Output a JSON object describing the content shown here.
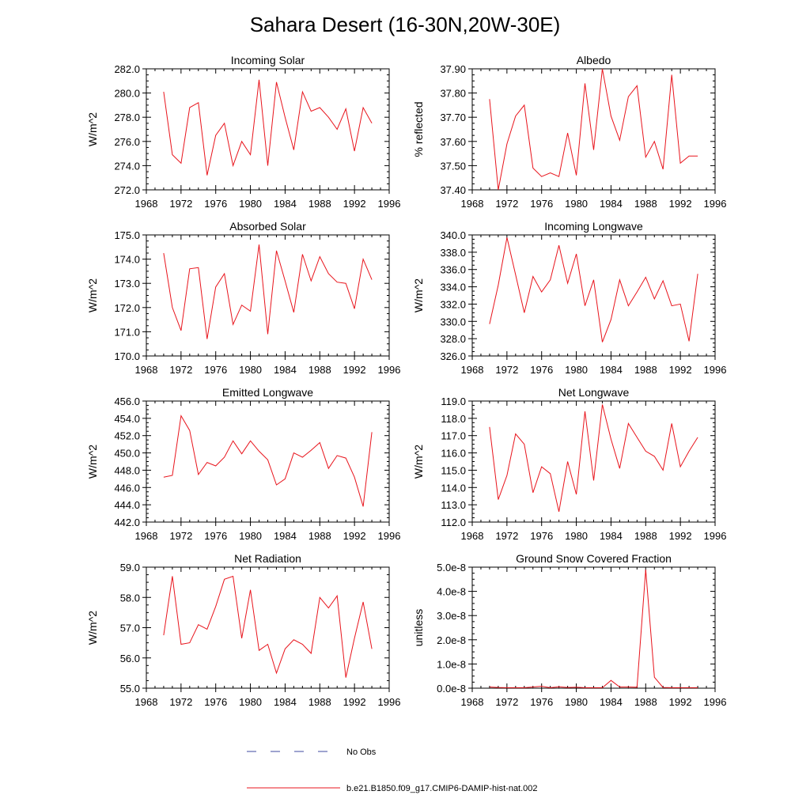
{
  "title": "Sahara Desert (16-30N,20W-30E)",
  "colors": {
    "model": "#e8141c",
    "obs": "#3c4aa0"
  },
  "legend": {
    "obs_label": "No Obs",
    "model_label": "b.e21.B1850.f09_g17.CMIP6-DAMIP-hist-nat.002"
  },
  "chart_data": [
    {
      "type": "line",
      "title": "Incoming Solar",
      "ylabel": "W/m^2",
      "xlim": [
        1968,
        1996
      ],
      "xticks": [
        "1968",
        "1972",
        "1976",
        "1980",
        "1984",
        "1988",
        "1992",
        "1996"
      ],
      "ylim": [
        272.0,
        282.0
      ],
      "yticks": [
        "272.0",
        "274.0",
        "276.0",
        "278.0",
        "280.0",
        "282.0"
      ],
      "x": [
        1970,
        1971,
        1972,
        1973,
        1974,
        1975,
        1976,
        1977,
        1978,
        1979,
        1980,
        1981,
        1982,
        1983,
        1984,
        1985,
        1986,
        1987,
        1988,
        1989,
        1990,
        1991,
        1992,
        1993,
        1994
      ],
      "series": [
        {
          "values": [
            280.1,
            274.9,
            274.2,
            278.8,
            279.2,
            273.2,
            276.5,
            277.5,
            274.0,
            276.0,
            274.9,
            281.1,
            274.0,
            280.9,
            278.0,
            275.3,
            280.1,
            278.5,
            278.8,
            278.0,
            277.0,
            278.7,
            275.2,
            278.8,
            277.5
          ]
        }
      ]
    },
    {
      "type": "line",
      "title": "Albedo",
      "ylabel": "% reflected",
      "xlim": [
        1968,
        1996
      ],
      "xticks": [
        "1968",
        "1972",
        "1976",
        "1980",
        "1984",
        "1988",
        "1992",
        "1996"
      ],
      "ylim": [
        37.4,
        37.9
      ],
      "yticks": [
        "37.40",
        "37.50",
        "37.60",
        "37.70",
        "37.80",
        "37.90"
      ],
      "x": [
        1970,
        1971,
        1972,
        1973,
        1974,
        1975,
        1976,
        1977,
        1978,
        1979,
        1980,
        1981,
        1982,
        1983,
        1984,
        1985,
        1986,
        1987,
        1988,
        1989,
        1990,
        1991,
        1992,
        1993,
        1994
      ],
      "series": [
        {
          "values": [
            37.775,
            37.4,
            37.59,
            37.705,
            37.75,
            37.49,
            37.455,
            37.47,
            37.455,
            37.635,
            37.46,
            37.84,
            37.565,
            37.9,
            37.705,
            37.605,
            37.785,
            37.83,
            37.535,
            37.6,
            37.485,
            37.875,
            37.51,
            37.54,
            37.54
          ]
        }
      ]
    },
    {
      "type": "line",
      "title": "Absorbed Solar",
      "ylabel": "W/m^2",
      "xlim": [
        1968,
        1996
      ],
      "xticks": [
        "1968",
        "1972",
        "1976",
        "1980",
        "1984",
        "1988",
        "1992",
        "1996"
      ],
      "ylim": [
        170.0,
        175.0
      ],
      "yticks": [
        "170.0",
        "171.0",
        "172.0",
        "173.0",
        "174.0",
        "175.0"
      ],
      "x": [
        1970,
        1971,
        1972,
        1973,
        1974,
        1975,
        1976,
        1977,
        1978,
        1979,
        1980,
        1981,
        1982,
        1983,
        1984,
        1985,
        1986,
        1987,
        1988,
        1989,
        1990,
        1991,
        1992,
        1993,
        1994
      ],
      "series": [
        {
          "values": [
            174.25,
            172.0,
            171.05,
            173.6,
            173.65,
            170.7,
            172.85,
            173.4,
            171.3,
            172.1,
            171.85,
            174.6,
            170.9,
            174.35,
            173.1,
            171.8,
            174.2,
            173.1,
            174.1,
            173.4,
            173.05,
            173.0,
            171.95,
            174.0,
            173.15
          ]
        }
      ]
    },
    {
      "type": "line",
      "title": "Incoming Longwave",
      "ylabel": "W/m^2",
      "xlim": [
        1968,
        1996
      ],
      "xticks": [
        "1968",
        "1972",
        "1976",
        "1980",
        "1984",
        "1988",
        "1992",
        "1996"
      ],
      "ylim": [
        326.0,
        340.0
      ],
      "yticks": [
        "326.0",
        "328.0",
        "330.0",
        "332.0",
        "334.0",
        "336.0",
        "338.0",
        "340.0"
      ],
      "x": [
        1970,
        1971,
        1972,
        1973,
        1974,
        1975,
        1976,
        1977,
        1978,
        1979,
        1980,
        1981,
        1982,
        1983,
        1984,
        1985,
        1986,
        1987,
        1988,
        1989,
        1990,
        1991,
        1992,
        1993,
        1994
      ],
      "series": [
        {
          "values": [
            329.7,
            334.2,
            339.7,
            335.4,
            331.0,
            335.2,
            333.4,
            334.8,
            338.8,
            334.4,
            337.8,
            331.8,
            334.8,
            327.6,
            330.2,
            334.8,
            331.8,
            333.4,
            335.1,
            332.6,
            334.7,
            331.8,
            332.0,
            327.7,
            335.5
          ]
        }
      ]
    },
    {
      "type": "line",
      "title": "Emitted Longwave",
      "ylabel": "W/m^2",
      "xlim": [
        1968,
        1996
      ],
      "xticks": [
        "1968",
        "1972",
        "1976",
        "1980",
        "1984",
        "1988",
        "1992",
        "1996"
      ],
      "ylim": [
        442.0,
        456.0
      ],
      "yticks": [
        "442.0",
        "444.0",
        "446.0",
        "448.0",
        "450.0",
        "452.0",
        "454.0",
        "456.0"
      ],
      "x": [
        1970,
        1971,
        1972,
        1973,
        1974,
        1975,
        1976,
        1977,
        1978,
        1979,
        1980,
        1981,
        1982,
        1983,
        1984,
        1985,
        1986,
        1987,
        1988,
        1989,
        1990,
        1991,
        1992,
        1993,
        1994
      ],
      "series": [
        {
          "values": [
            447.2,
            447.4,
            454.3,
            452.6,
            447.5,
            448.9,
            448.5,
            449.5,
            451.4,
            449.9,
            451.4,
            450.2,
            449.2,
            446.3,
            447.0,
            450.0,
            449.5,
            450.3,
            451.2,
            448.2,
            449.7,
            449.4,
            447.2,
            443.8,
            452.4
          ]
        }
      ]
    },
    {
      "type": "line",
      "title": "Net Longwave",
      "ylabel": "W/m^2",
      "xlim": [
        1968,
        1996
      ],
      "xticks": [
        "1968",
        "1972",
        "1976",
        "1980",
        "1984",
        "1988",
        "1992",
        "1996"
      ],
      "ylim": [
        112.0,
        119.0
      ],
      "yticks": [
        "112.0",
        "113.0",
        "114.0",
        "115.0",
        "116.0",
        "117.0",
        "118.0",
        "119.0"
      ],
      "x": [
        1970,
        1971,
        1972,
        1973,
        1974,
        1975,
        1976,
        1977,
        1978,
        1979,
        1980,
        1981,
        1982,
        1983,
        1984,
        1985,
        1986,
        1987,
        1988,
        1989,
        1990,
        1991,
        1992,
        1993,
        1994
      ],
      "series": [
        {
          "values": [
            117.5,
            113.3,
            114.7,
            117.1,
            116.5,
            113.7,
            115.2,
            114.8,
            112.6,
            115.5,
            113.6,
            118.4,
            114.4,
            118.8,
            116.8,
            115.1,
            117.7,
            116.9,
            116.1,
            115.8,
            115.0,
            117.7,
            115.2,
            116.1,
            116.9
          ]
        }
      ]
    },
    {
      "type": "line",
      "title": "Net Radiation",
      "ylabel": "W/m^2",
      "xlim": [
        1968,
        1996
      ],
      "xticks": [
        "1968",
        "1972",
        "1976",
        "1980",
        "1984",
        "1988",
        "1992",
        "1996"
      ],
      "ylim": [
        55.0,
        59.0
      ],
      "yticks": [
        "55.0",
        "56.0",
        "57.0",
        "58.0",
        "59.0"
      ],
      "x": [
        1970,
        1971,
        1972,
        1973,
        1974,
        1975,
        1976,
        1977,
        1978,
        1979,
        1980,
        1981,
        1982,
        1983,
        1984,
        1985,
        1986,
        1987,
        1988,
        1989,
        1990,
        1991,
        1992,
        1993,
        1994
      ],
      "series": [
        {
          "values": [
            56.75,
            58.7,
            56.45,
            56.5,
            57.1,
            56.95,
            57.7,
            58.6,
            58.7,
            56.65,
            58.25,
            56.25,
            56.45,
            55.5,
            56.3,
            56.6,
            56.45,
            56.15,
            58.0,
            57.65,
            58.05,
            55.35,
            56.65,
            57.85,
            56.3
          ]
        }
      ]
    },
    {
      "type": "line",
      "title": "Ground Snow Covered Fraction",
      "ylabel": "unitless",
      "xlim": [
        1968,
        1996
      ],
      "xticks": [
        "1968",
        "1972",
        "1976",
        "1980",
        "1984",
        "1988",
        "1992",
        "1996"
      ],
      "ylim": [
        0,
        5e-08
      ],
      "yticks": [
        "0.0e-8",
        "1.0e-8",
        "2.0e-8",
        "3.0e-8",
        "4.0e-8",
        "5.0e-8"
      ],
      "x": [
        1970,
        1971,
        1972,
        1973,
        1974,
        1975,
        1976,
        1977,
        1978,
        1979,
        1980,
        1981,
        1982,
        1983,
        1984,
        1985,
        1986,
        1987,
        1988,
        1989,
        1990,
        1991,
        1992,
        1993,
        1994
      ],
      "series": [
        {
          "values": [
            5e-10,
            3e-10,
            2e-10,
            2e-10,
            2e-10,
            5e-10,
            8e-10,
            2e-10,
            6e-10,
            3e-10,
            4e-10,
            2e-10,
            2e-10,
            2e-10,
            3.2e-09,
            5e-10,
            5e-10,
            4e-10,
            4.9e-08,
            4.5e-09,
            3e-10,
            2e-10,
            2e-10,
            2e-10,
            2e-10
          ]
        }
      ]
    }
  ]
}
